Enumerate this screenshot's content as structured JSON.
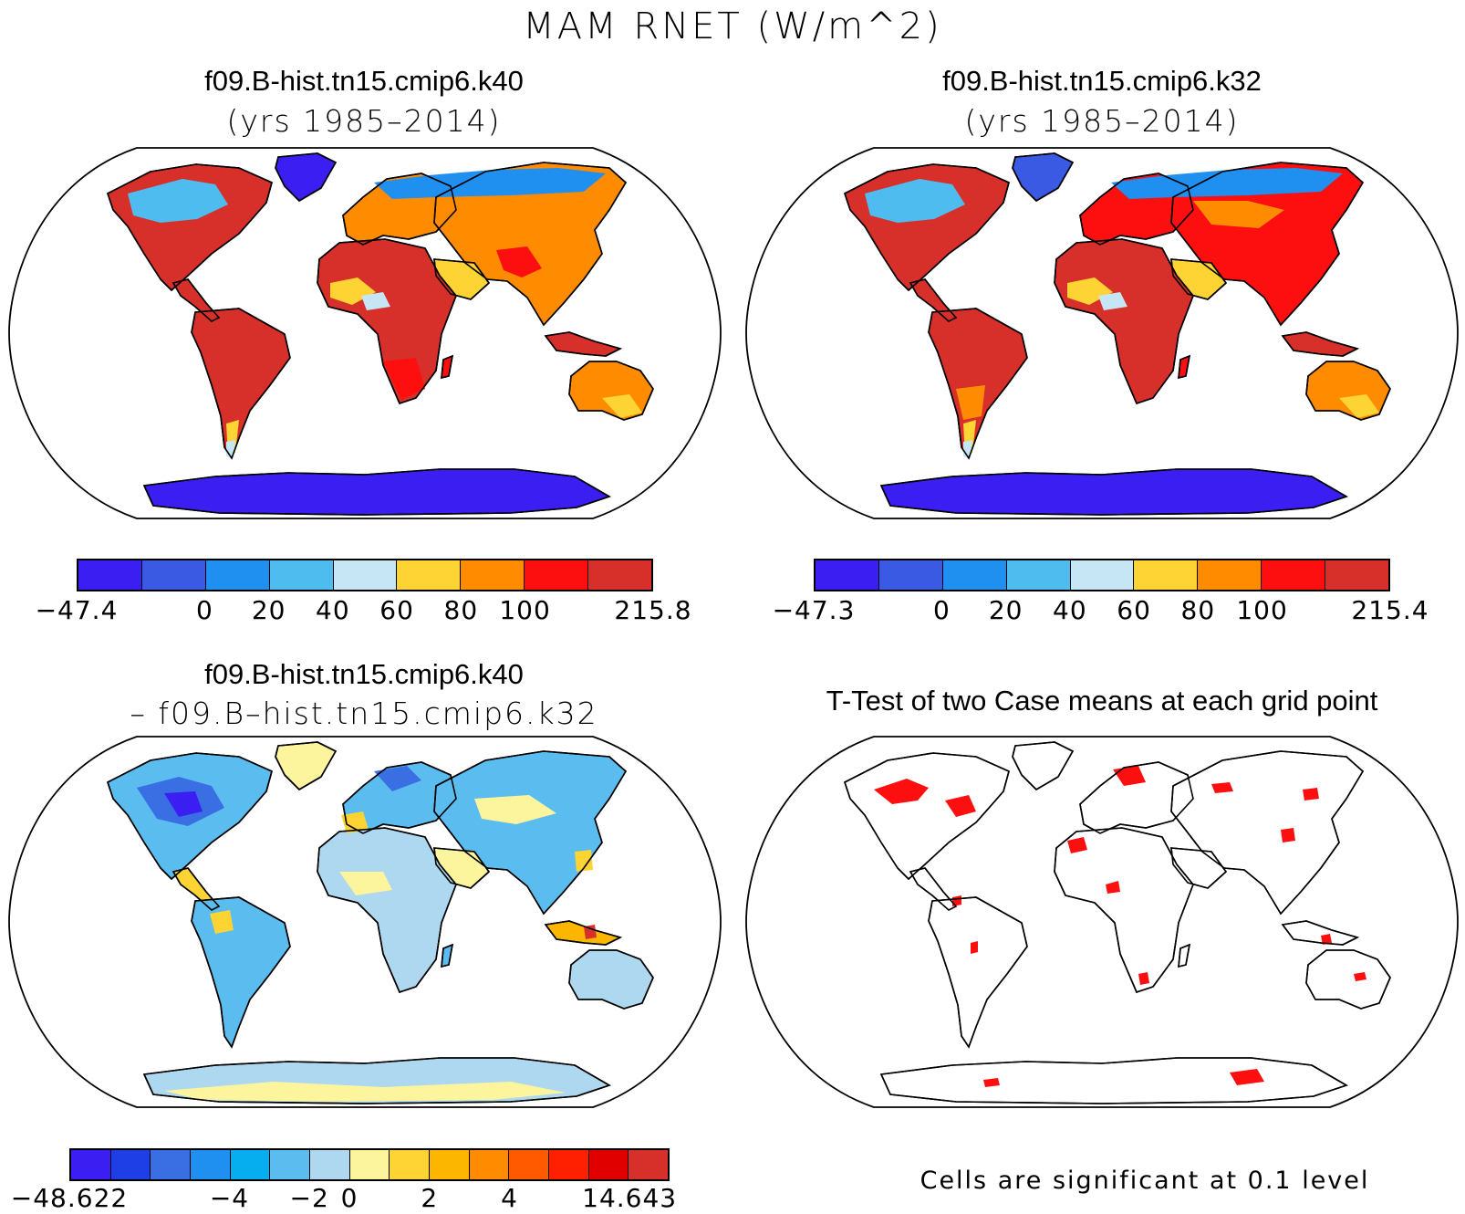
{
  "title": "MAM RNET (W/m^2)",
  "panels": [
    {
      "title": "f09.B-hist.tn15.cmip6.k40",
      "subtitle": "(yrs 1985–2014)"
    },
    {
      "title": "f09.B-hist.tn15.cmip6.k32",
      "subtitle": "(yrs 1985–2014)"
    },
    {
      "title": "f09.B-hist.tn15.cmip6.k40",
      "subtitle": "– f09.B–hist.tn15.cmip6.k32"
    },
    {
      "title": "T-Test of two Case means at each grid point",
      "subtitle": ""
    }
  ],
  "colorbars": {
    "k40": {
      "colors": [
        "#3b1ff2",
        "#3a5ae3",
        "#1f8ff0",
        "#4fbcf0",
        "#c7e6f5",
        "#fdd433",
        "#ff8c00",
        "#fe0f0f",
        "#d7302a"
      ],
      "labels": [
        "−47.4",
        "0",
        "20",
        "40",
        "60",
        "80",
        "100",
        "215.8"
      ],
      "label_bounds": [
        0,
        2,
        3,
        4,
        5,
        6,
        7,
        9
      ]
    },
    "k32": {
      "colors": [
        "#3b1ff2",
        "#3a5ae3",
        "#1f8ff0",
        "#4fbcf0",
        "#c7e6f5",
        "#fdd433",
        "#ff8c00",
        "#fe0f0f",
        "#d7302a"
      ],
      "labels": [
        "−47.3",
        "0",
        "20",
        "40",
        "60",
        "80",
        "100",
        "215.4"
      ],
      "label_bounds": [
        0,
        2,
        3,
        4,
        5,
        6,
        7,
        9
      ]
    },
    "diff": {
      "colors": [
        "#3b1ff2",
        "#1f3fe6",
        "#3a6fe3",
        "#1f8ff0",
        "#06aef0",
        "#5bbcef",
        "#add8ef",
        "#fdf59d",
        "#fdd433",
        "#fdb600",
        "#ff8c00",
        "#ff5a00",
        "#fe2000",
        "#e00000",
        "#d7302a"
      ],
      "labels": [
        "−48.622",
        "−4",
        "−2",
        "0",
        "2",
        "4",
        "14.643"
      ],
      "label_bounds": [
        0,
        4,
        6,
        7,
        9,
        11,
        14
      ]
    }
  },
  "significance_note": "Cells are significant at 0.1 level"
}
